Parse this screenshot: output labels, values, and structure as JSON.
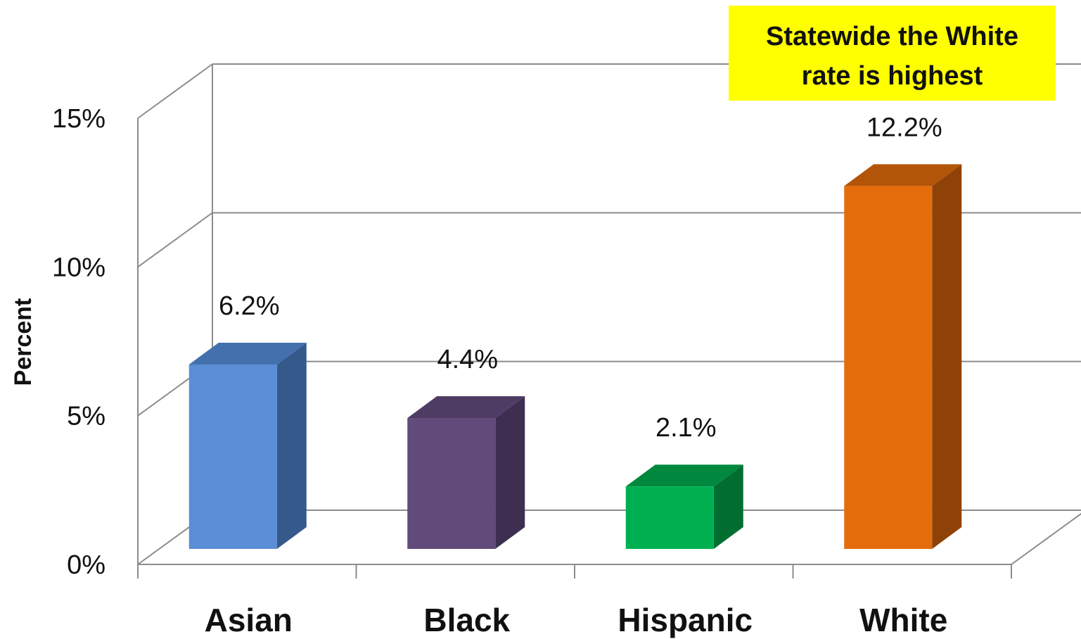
{
  "chart_data": {
    "type": "bar",
    "categories": [
      "Asian",
      "Black",
      "Hispanic",
      "White"
    ],
    "values": [
      6.2,
      4.4,
      2.1,
      12.2
    ],
    "data_labels": [
      "6.2%",
      "4.4%",
      "2.1%",
      "12.2%"
    ],
    "ylabel": "Percent",
    "ylim": [
      0,
      15
    ],
    "yticks": [
      0,
      5,
      10,
      15
    ],
    "ytick_labels": [
      "0%",
      "5%",
      "10%",
      "15%"
    ],
    "grid": true,
    "style": "3d-column",
    "colors": [
      "#5a8ed6",
      "#614b7a",
      "#00b050",
      "#e46c0a"
    ],
    "side_colors": [
      "#35598a",
      "#3e2f52",
      "#006e30",
      "#8f4207"
    ],
    "top_colors": [
      "#4471ad",
      "#4f3c65",
      "#00893e",
      "#b35508"
    ]
  },
  "annotation": {
    "line1": "Statewide the White",
    "line2": "rate is highest",
    "background": "#ffff00"
  }
}
